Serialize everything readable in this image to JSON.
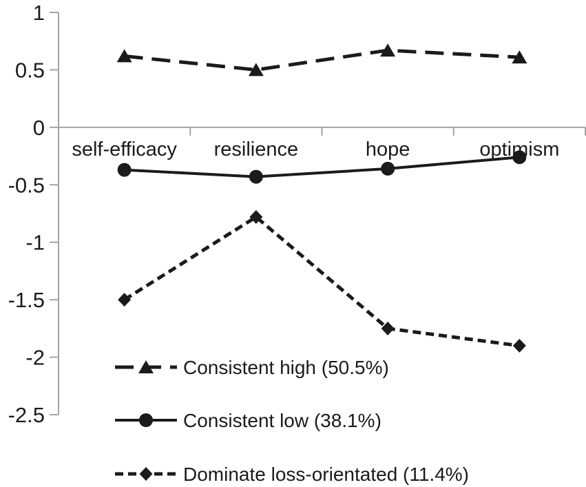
{
  "figure": {
    "background": "#ffffff",
    "text_color": "#1b1b1b",
    "series_color": "#1b1b1b",
    "axis_color": "#a3a3a3"
  },
  "chart_data": {
    "type": "line",
    "title": "",
    "xlabel": "",
    "ylabel": "",
    "categories": [
      "self-efficacy",
      "resilience",
      "hope",
      "optimism"
    ],
    "series": [
      {
        "name": "Consistent high (50.5%)",
        "marker": "triangle",
        "line_style": "long-dash",
        "values": [
          0.62,
          0.5,
          0.67,
          0.61
        ]
      },
      {
        "name": "Consistent low (38.1%)",
        "marker": "circle",
        "line_style": "solid",
        "values": [
          -0.37,
          -0.43,
          -0.36,
          -0.26
        ]
      },
      {
        "name": "Dominate loss-orientated (11.4%)",
        "marker": "diamond",
        "line_style": "short-dash",
        "values": [
          -1.5,
          -0.78,
          -1.75,
          -1.9
        ]
      }
    ],
    "ylim": [
      -2.5,
      1
    ],
    "y_ticks": [
      1,
      0.5,
      0,
      -0.5,
      -1,
      -1.5,
      -2,
      -2.5
    ],
    "y_tick_labels": [
      "1",
      "0.5",
      "0",
      "-0.5",
      "-1",
      "-1.5",
      "-2",
      "-2.5"
    ],
    "grid": false,
    "legend_position": "inside-bottom-left"
  }
}
